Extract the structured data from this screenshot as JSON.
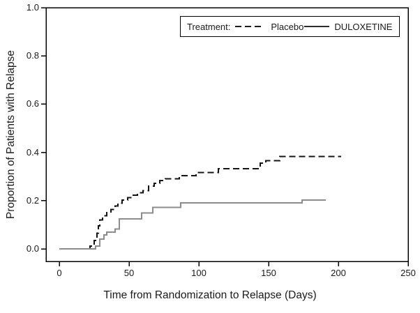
{
  "figure": {
    "background": "#ffffff",
    "axis_color": "#000000"
  },
  "legend": {
    "label": "Treatment:",
    "position": "top-right-inside",
    "entries": [
      {
        "name": "Placebo",
        "line": "dashed"
      },
      {
        "name": "DULOXETINE",
        "line": "solid"
      }
    ]
  },
  "chart_data": {
    "type": "line",
    "subtype": "kaplan-meier-step",
    "title": "",
    "xlabel": "Time from Randomization to Relapse (Days)",
    "ylabel": "Proportion of Patients with Relapse",
    "xlim": [
      0,
      250
    ],
    "ylim": [
      0.0,
      1.0
    ],
    "grid": false,
    "xticks": [
      {
        "label": "0",
        "value": 0
      },
      {
        "label": "50",
        "value": 50
      },
      {
        "label": "100",
        "value": 100
      },
      {
        "label": "150",
        "value": 150
      },
      {
        "label": "200",
        "value": 200
      },
      {
        "label": "250",
        "value": 250
      }
    ],
    "yticks": [
      {
        "label": "0.0",
        "value": 0.0
      },
      {
        "label": "0.2",
        "value": 0.2
      },
      {
        "label": "0.4",
        "value": 0.4
      },
      {
        "label": "0.6",
        "value": 0.6
      },
      {
        "label": "0.8",
        "value": 0.8
      },
      {
        "label": "1.0",
        "value": 1.0
      }
    ],
    "series": [
      {
        "name": "Placebo",
        "style": "dashed",
        "color": "#141414",
        "points": [
          [
            0,
            0.0
          ],
          [
            22,
            0.012
          ],
          [
            25,
            0.035
          ],
          [
            27,
            0.065
          ],
          [
            28,
            0.095
          ],
          [
            29,
            0.12
          ],
          [
            31,
            0.138
          ],
          [
            34,
            0.15
          ],
          [
            37,
            0.163
          ],
          [
            40,
            0.178
          ],
          [
            42,
            0.19
          ],
          [
            45,
            0.203
          ],
          [
            49,
            0.213
          ],
          [
            52,
            0.222
          ],
          [
            56,
            0.232
          ],
          [
            60,
            0.241
          ],
          [
            64,
            0.26
          ],
          [
            68,
            0.272
          ],
          [
            72,
            0.283
          ],
          [
            76,
            0.291
          ],
          [
            86,
            0.303
          ],
          [
            98,
            0.316
          ],
          [
            114,
            0.333
          ],
          [
            144,
            0.355
          ],
          [
            148,
            0.366
          ],
          [
            158,
            0.383
          ],
          [
            202,
            0.383
          ]
        ]
      },
      {
        "name": "DULOXETINE",
        "style": "solid",
        "color": "#8c8c8c",
        "points": [
          [
            0,
            0.0
          ],
          [
            26,
            0.012
          ],
          [
            29,
            0.04
          ],
          [
            32,
            0.058
          ],
          [
            34,
            0.07
          ],
          [
            40,
            0.082
          ],
          [
            43,
            0.125
          ],
          [
            59,
            0.149
          ],
          [
            67,
            0.172
          ],
          [
            87,
            0.191
          ],
          [
            174,
            0.202
          ],
          [
            191,
            0.202
          ]
        ]
      }
    ]
  }
}
